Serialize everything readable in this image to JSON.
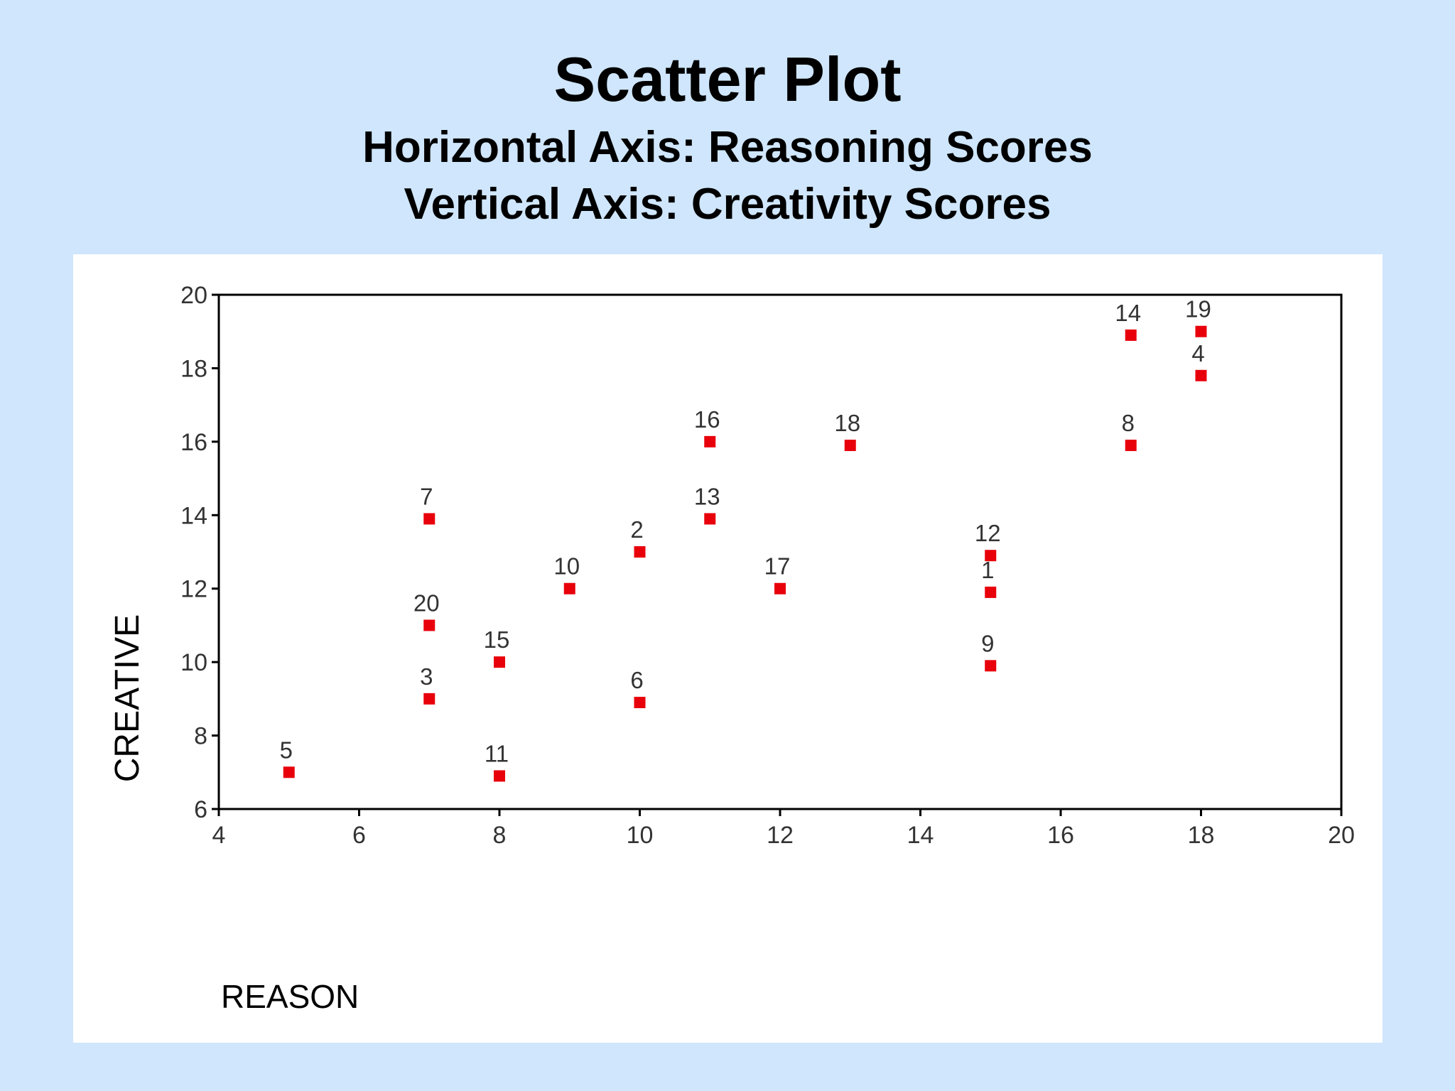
{
  "slide": {
    "title": "Scatter Plot",
    "subtitle_line1": "Horizontal Axis: Reasoning Scores",
    "subtitle_line2": "Vertical Axis: Creativity Scores",
    "background_color": "#cfe6fc",
    "panel_color": "#ffffff"
  },
  "chart_data": {
    "type": "scatter",
    "title": "",
    "xlabel": "REASON",
    "ylabel": "CREATIVE",
    "xlim": [
      4,
      20
    ],
    "ylim": [
      6,
      20
    ],
    "xticks": [
      4,
      6,
      8,
      10,
      12,
      14,
      16,
      18,
      20
    ],
    "yticks": [
      6,
      8,
      10,
      12,
      14,
      16,
      18,
      20
    ],
    "grid": false,
    "marker_color": "#e8000b",
    "points": [
      {
        "label": "1",
        "x": 15,
        "y": 11.9
      },
      {
        "label": "2",
        "x": 10,
        "y": 13
      },
      {
        "label": "3",
        "x": 7,
        "y": 9
      },
      {
        "label": "4",
        "x": 18,
        "y": 17.8
      },
      {
        "label": "5",
        "x": 5,
        "y": 7
      },
      {
        "label": "6",
        "x": 10,
        "y": 8.9
      },
      {
        "label": "7",
        "x": 7,
        "y": 13.9
      },
      {
        "label": "8",
        "x": 17,
        "y": 15.9
      },
      {
        "label": "9",
        "x": 15,
        "y": 9.9
      },
      {
        "label": "10",
        "x": 9,
        "y": 12
      },
      {
        "label": "11",
        "x": 8,
        "y": 6.9
      },
      {
        "label": "12",
        "x": 15,
        "y": 12.9
      },
      {
        "label": "13",
        "x": 11,
        "y": 13.9
      },
      {
        "label": "14",
        "x": 17,
        "y": 18.9
      },
      {
        "label": "15",
        "x": 8,
        "y": 10
      },
      {
        "label": "16",
        "x": 11,
        "y": 16
      },
      {
        "label": "17",
        "x": 12,
        "y": 12
      },
      {
        "label": "18",
        "x": 13,
        "y": 15.9
      },
      {
        "label": "19",
        "x": 18,
        "y": 19
      },
      {
        "label": "20",
        "x": 7,
        "y": 11
      }
    ]
  }
}
